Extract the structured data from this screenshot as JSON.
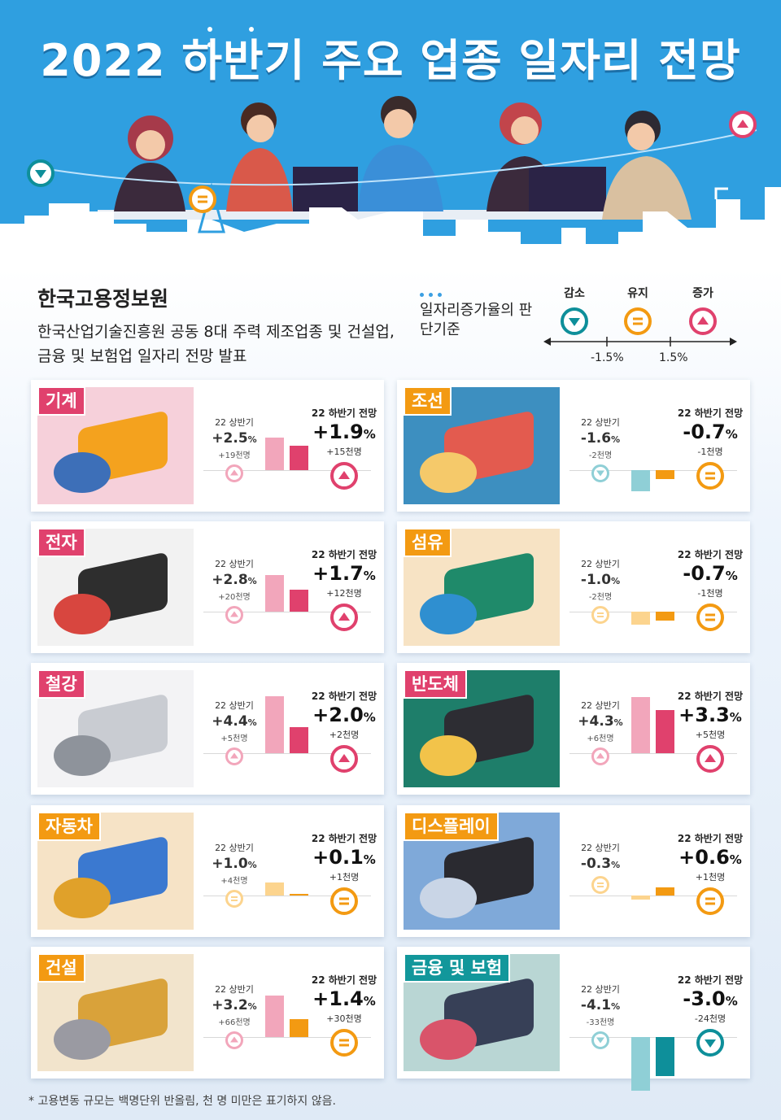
{
  "title": "2022 하반기 주요 업종 일자리 전망",
  "org": "한국고용정보원",
  "description": "한국산업기술진흥원 공동 8대 주력 제조업종 및 건설업, 금융 및 보험업 일자리 전망 발표",
  "criteria": {
    "title": "일자리증가율의 판단기준",
    "decrease": "감소",
    "maintain": "유지",
    "increase": "증가",
    "low_threshold": "-1.5%",
    "high_threshold": "1.5%"
  },
  "labels": {
    "h1_caption": "22 상반기",
    "h2_caption": "22 하반기 전망"
  },
  "colors": {
    "increase": "#e0416d",
    "increase_light": "#f2a6bb",
    "maintain": "#f39a12",
    "maintain_light": "#fcd48e",
    "decrease": "#0e8f9a",
    "decrease_light": "#8fcfd6",
    "hero_bg": "#2f9fe0"
  },
  "industries": [
    {
      "name": "기계",
      "tag_color": "red",
      "h1": {
        "value": 2.5,
        "pct": "+2.5",
        "emp": "+19천명",
        "status": "inc"
      },
      "h2": {
        "value": 1.9,
        "pct": "+1.9",
        "emp": "+15천명",
        "status": "inc"
      }
    },
    {
      "name": "조선",
      "tag_color": "orange",
      "h1": {
        "value": -1.6,
        "pct": "-1.6",
        "emp": "-2천명",
        "status": "dec"
      },
      "h2": {
        "value": -0.7,
        "pct": "-0.7",
        "emp": "-1천명",
        "status": "keep"
      }
    },
    {
      "name": "전자",
      "tag_color": "red",
      "h1": {
        "value": 2.8,
        "pct": "+2.8",
        "emp": "+20천명",
        "status": "inc"
      },
      "h2": {
        "value": 1.7,
        "pct": "+1.7",
        "emp": "+12천명",
        "status": "inc"
      }
    },
    {
      "name": "섬유",
      "tag_color": "orange",
      "h1": {
        "value": -1.0,
        "pct": "-1.0",
        "emp": "-2천명",
        "status": "keep"
      },
      "h2": {
        "value": -0.7,
        "pct": "-0.7",
        "emp": "-1천명",
        "status": "keep"
      }
    },
    {
      "name": "철강",
      "tag_color": "red",
      "h1": {
        "value": 4.4,
        "pct": "+4.4",
        "emp": "+5천명",
        "status": "inc"
      },
      "h2": {
        "value": 2.0,
        "pct": "+2.0",
        "emp": "+2천명",
        "status": "inc"
      }
    },
    {
      "name": "반도체",
      "tag_color": "red",
      "h1": {
        "value": 4.3,
        "pct": "+4.3",
        "emp": "+6천명",
        "status": "inc"
      },
      "h2": {
        "value": 3.3,
        "pct": "+3.3",
        "emp": "+5천명",
        "status": "inc"
      }
    },
    {
      "name": "자동차",
      "tag_color": "orange",
      "h1": {
        "value": 1.0,
        "pct": "+1.0",
        "emp": "+4천명",
        "status": "keep"
      },
      "h2": {
        "value": 0.1,
        "pct": "+0.1",
        "emp": "+1천명",
        "status": "keep"
      }
    },
    {
      "name": "디스플레이",
      "tag_color": "orange",
      "h1": {
        "value": -0.3,
        "pct": "-0.3",
        "emp": "",
        "status": "keep"
      },
      "h2": {
        "value": 0.6,
        "pct": "+0.6",
        "emp": "+1천명",
        "status": "keep"
      }
    },
    {
      "name": "건설",
      "tag_color": "orange",
      "h1": {
        "value": 3.2,
        "pct": "+3.2",
        "emp": "+66천명",
        "status": "inc"
      },
      "h2": {
        "value": 1.4,
        "pct": "+1.4",
        "emp": "+30천명",
        "status": "keep"
      }
    },
    {
      "name": "금융 및 보험",
      "tag_color": "teal",
      "h1": {
        "value": -4.1,
        "pct": "-4.1",
        "emp": "-33천명",
        "status": "dec"
      },
      "h2": {
        "value": -3.0,
        "pct": "-3.0",
        "emp": "-24천명",
        "status": "dec"
      }
    }
  ],
  "footnote": "* 고용변동 규모는 백명단위 반올림, 천 명 미만은 표기하지 않음."
}
